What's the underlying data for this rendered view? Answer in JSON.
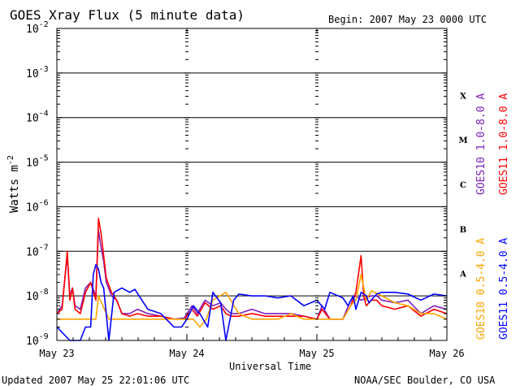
{
  "header": {
    "title": "GOES Xray Flux (5 minute data)",
    "begin": "Begin:  2007 May 23 0000 UTC"
  },
  "footer": {
    "updated": "Updated 2007 May 25 22:01:06 UTC",
    "credit": "NOAA/SEC Boulder, CO USA"
  },
  "chart_data": {
    "type": "line",
    "title": "GOES Xray Flux (5 minute data)",
    "xlabel": "Universal Time",
    "ylabel": "Watts m",
    "ylabel_superscript": "-2",
    "xlim_days": [
      0,
      3
    ],
    "x_tick_labels": [
      "May 23",
      "May 24",
      "May 25",
      "May 26"
    ],
    "y_scale": "log",
    "ylim": [
      1e-09,
      0.01
    ],
    "y_tick_labels": [
      {
        "base": "10",
        "exp": "-2"
      },
      {
        "base": "10",
        "exp": "-3"
      },
      {
        "base": "10",
        "exp": "-4"
      },
      {
        "base": "10",
        "exp": "-5"
      },
      {
        "base": "10",
        "exp": "-6"
      },
      {
        "base": "10",
        "exp": "-7"
      },
      {
        "base": "10",
        "exp": "-8"
      },
      {
        "base": "10",
        "exp": "-9"
      }
    ],
    "flare_classes": [
      "X",
      "M",
      "C",
      "B",
      "A"
    ],
    "grid": "horizontal at each decade",
    "series": [
      {
        "name": "GOES10 1.0-8.0 A",
        "color": "#7f1fbf",
        "x": [
          0,
          0.04,
          0.08,
          0.1,
          0.12,
          0.14,
          0.18,
          0.22,
          0.26,
          0.3,
          0.32,
          0.34,
          0.36,
          0.38,
          0.42,
          0.46,
          0.5,
          0.56,
          0.62,
          0.7,
          0.8,
          0.9,
          0.98,
          1.04,
          1.08,
          1.14,
          1.2,
          1.26,
          1.3,
          1.34,
          1.4,
          1.5,
          1.6,
          1.7,
          1.8,
          1.9,
          2.0,
          2.04,
          2.1,
          2.2,
          2.26,
          2.3,
          2.34,
          2.38,
          2.42,
          2.46,
          2.5,
          2.6,
          2.7,
          2.8,
          2.9,
          3.0
        ],
        "y": [
          4e-09,
          6e-09,
          8e-08,
          1e-08,
          1.5e-08,
          6e-09,
          5e-09,
          1.5e-08,
          2e-08,
          1e-08,
          3e-07,
          1.2e-07,
          6e-08,
          2e-08,
          1e-08,
          8e-09,
          4e-09,
          4e-09,
          5e-09,
          4e-09,
          3.5e-09,
          3e-09,
          3.2e-09,
          6e-09,
          4e-09,
          8e-09,
          6e-09,
          7e-09,
          5e-09,
          4e-09,
          4e-09,
          5e-09,
          4e-09,
          4e-09,
          4e-09,
          3.5e-09,
          3e-09,
          6e-09,
          3e-09,
          3e-09,
          8e-09,
          1e-08,
          8e-09,
          9e-09,
          1e-08,
          1e-08,
          8e-09,
          7e-09,
          8e-09,
          4e-09,
          6e-09,
          5e-09
        ]
      },
      {
        "name": "GOES11 1.0-8.0 A",
        "color": "#ff0000",
        "x": [
          0,
          0.04,
          0.08,
          0.1,
          0.12,
          0.14,
          0.18,
          0.22,
          0.26,
          0.3,
          0.32,
          0.34,
          0.36,
          0.38,
          0.42,
          0.46,
          0.5,
          0.56,
          0.62,
          0.7,
          0.8,
          0.9,
          0.98,
          1.04,
          1.08,
          1.14,
          1.2,
          1.26,
          1.3,
          1.34,
          1.4,
          1.5,
          1.6,
          1.7,
          1.8,
          1.9,
          2.0,
          2.04,
          2.1,
          2.2,
          2.26,
          2.3,
          2.34,
          2.36,
          2.38,
          2.42,
          2.46,
          2.5,
          2.6,
          2.7,
          2.8,
          2.9,
          3.0
        ],
        "y": [
          4e-09,
          5e-09,
          1e-07,
          8e-09,
          1.5e-08,
          5e-09,
          4e-09,
          1.2e-08,
          2e-08,
          8e-09,
          5.5e-07,
          2.5e-07,
          8e-08,
          2.5e-08,
          1.2e-08,
          8e-09,
          4e-09,
          3.5e-09,
          4e-09,
          3.5e-09,
          3.5e-09,
          3e-09,
          3e-09,
          5e-09,
          3.5e-09,
          7e-09,
          5e-09,
          6e-09,
          4e-09,
          3.5e-09,
          3.5e-09,
          4e-09,
          3.5e-09,
          3.5e-09,
          3.5e-09,
          3.5e-09,
          3e-09,
          5e-09,
          3e-09,
          3e-09,
          6e-09,
          1.2e-08,
          8e-08,
          1e-08,
          6e-09,
          8e-09,
          8e-09,
          6e-09,
          5e-09,
          6e-09,
          3.5e-09,
          5e-09,
          4e-09
        ]
      },
      {
        "name": "GOES10 0.5-4.0 A",
        "color": "#ffa500",
        "x": [
          0,
          0.1,
          0.2,
          0.3,
          0.32,
          0.4,
          0.5,
          0.6,
          0.7,
          0.8,
          0.9,
          1.0,
          1.05,
          1.1,
          1.15,
          1.2,
          1.3,
          1.4,
          1.5,
          1.6,
          1.7,
          1.8,
          1.9,
          2.0,
          2.1,
          2.2,
          2.26,
          2.3,
          2.34,
          2.38,
          2.42,
          2.5,
          2.6,
          2.7,
          2.8,
          2.9,
          3.0
        ],
        "y": [
          3e-09,
          3e-09,
          3e-09,
          3e-09,
          1e-08,
          3e-09,
          3e-09,
          3e-09,
          3e-09,
          3e-09,
          3e-09,
          3e-09,
          3e-09,
          2e-09,
          3e-09,
          8e-09,
          1.2e-08,
          4e-09,
          3e-09,
          3e-09,
          3e-09,
          4e-09,
          3e-09,
          3e-09,
          3e-09,
          3e-09,
          6e-09,
          8e-09,
          3e-08,
          8e-09,
          1.3e-08,
          1e-08,
          7e-09,
          6e-09,
          4e-09,
          4e-09,
          3e-09
        ]
      },
      {
        "name": "GOES11 0.5-4.0 A",
        "color": "#0000ff",
        "x": [
          0,
          0.1,
          0.14,
          0.18,
          0.22,
          0.26,
          0.28,
          0.3,
          0.32,
          0.34,
          0.36,
          0.4,
          0.44,
          0.5,
          0.56,
          0.6,
          0.7,
          0.8,
          0.9,
          0.96,
          1.0,
          1.05,
          1.1,
          1.16,
          1.2,
          1.26,
          1.3,
          1.36,
          1.4,
          1.5,
          1.6,
          1.7,
          1.8,
          1.9,
          2.0,
          2.06,
          2.1,
          2.2,
          2.24,
          2.28,
          2.3,
          2.34,
          2.38,
          2.4,
          2.46,
          2.5,
          2.6,
          2.7,
          2.8,
          2.9,
          3.0
        ],
        "y": [
          2e-09,
          1e-09,
          1e-09,
          1e-09,
          2e-09,
          2e-09,
          3e-08,
          5e-08,
          4e-08,
          2e-08,
          1.5e-08,
          1e-09,
          1.2e-08,
          1.5e-08,
          1.2e-08,
          1.4e-08,
          5e-09,
          4e-09,
          2e-09,
          2e-09,
          3e-09,
          6e-09,
          4e-09,
          2e-09,
          1.2e-08,
          7e-09,
          1e-09,
          8e-09,
          1.1e-08,
          1e-08,
          1e-08,
          9e-09,
          1e-08,
          6e-09,
          8e-09,
          5e-09,
          1.2e-08,
          9e-09,
          6e-09,
          1e-08,
          5e-09,
          1.2e-08,
          1e-08,
          7e-09,
          1.1e-08,
          1.2e-08,
          1.2e-08,
          1.1e-08,
          8e-09,
          1.1e-08,
          1e-08
        ]
      }
    ]
  }
}
